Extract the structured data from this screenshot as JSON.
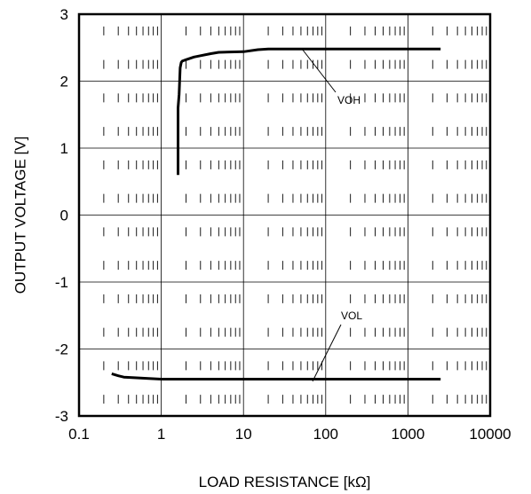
{
  "chart_data": {
    "type": "line",
    "xlabel": "LOAD RESISTANCE [kΩ]",
    "ylabel": "OUTPUT VOLTAGE [V]",
    "x_scale": "log",
    "xlim": [
      0.1,
      10000
    ],
    "ylim": [
      -3,
      3
    ],
    "x_ticks": [
      "0.1",
      "1",
      "10",
      "100",
      "1000",
      "10000"
    ],
    "y_ticks": [
      "3",
      "2",
      "1",
      "0",
      "-1",
      "-2",
      "-3"
    ],
    "grid": true,
    "series": [
      {
        "name": "VOH",
        "x": [
          1.6,
          1.6,
          1.65,
          1.7,
          1.75,
          1.8,
          2,
          2.5,
          3,
          4,
          5,
          10,
          15,
          20,
          50,
          100,
          1000,
          2500
        ],
        "y": [
          0.6,
          1.6,
          1.8,
          2.2,
          2.28,
          2.3,
          2.32,
          2.36,
          2.38,
          2.41,
          2.43,
          2.44,
          2.47,
          2.48,
          2.48,
          2.48,
          2.48,
          2.48
        ]
      },
      {
        "name": "VOL",
        "x": [
          0.25,
          0.3,
          0.35,
          0.5,
          0.7,
          1,
          10,
          100,
          1000,
          2500
        ],
        "y": [
          -2.37,
          -2.4,
          -2.42,
          -2.43,
          -2.44,
          -2.45,
          -2.45,
          -2.45,
          -2.45,
          -2.45
        ]
      }
    ],
    "annotations": [
      {
        "text": "VOH",
        "series": "VOH"
      },
      {
        "text": "VOL",
        "series": "VOL"
      }
    ]
  }
}
